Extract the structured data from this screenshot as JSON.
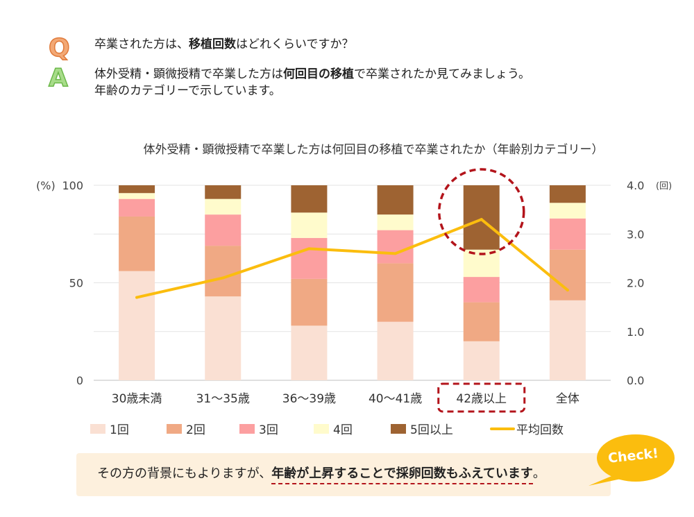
{
  "qa": {
    "q_letter": "Q",
    "a_letter": "A",
    "question_pre": "卒業された方は、",
    "question_bold": "移植回数",
    "question_post": "はどれくらいですか？",
    "answer_line1_pre": "体外受精・顕微授精で卒業した方は",
    "answer_line1_bold": "何回目の移植",
    "answer_line1_post": "で卒業されたか見てみましょう。",
    "answer_line2": "年齢のカテゴリーで示しています。"
  },
  "chart_data": {
    "type": "bar",
    "stacked": true,
    "title": "体外受精・顕微授精で卒業した方は何回目の移植で卒業されたか（年齢別カテゴリー）",
    "categories": [
      "30歳未満",
      "31～35歳",
      "36～39歳",
      "40～41歳",
      "42歳以上",
      "全体"
    ],
    "series": [
      {
        "name": "1回",
        "color": "#fae0d3",
        "values": [
          56,
          43,
          28,
          30,
          20,
          41
        ]
      },
      {
        "name": "2回",
        "color": "#f0a984",
        "values": [
          28,
          26,
          24,
          30,
          20,
          26
        ]
      },
      {
        "name": "3回",
        "color": "#fc9fa0",
        "values": [
          9,
          16,
          21,
          17,
          13,
          16
        ]
      },
      {
        "name": "4回",
        "color": "#fffbcc",
        "values": [
          3,
          8,
          13,
          8,
          14,
          8
        ]
      },
      {
        "name": "5回以上",
        "color": "#9e6332",
        "values": [
          4,
          7,
          14,
          15,
          33,
          9
        ]
      }
    ],
    "line_series": {
      "name": "平均回数",
      "color": "#fbbd0e",
      "values": [
        1.7,
        2.1,
        2.7,
        2.6,
        3.3,
        1.85
      ]
    },
    "y_left": {
      "label": "(%)",
      "min": 0,
      "max": 100,
      "ticks": [
        "0",
        "50",
        "100"
      ],
      "tick_values": [
        0,
        50,
        100
      ]
    },
    "y_right": {
      "label": "(回)",
      "min": 0,
      "max": 4,
      "ticks": [
        "0.0",
        "1.0",
        "2.0",
        "3.0",
        "4.0"
      ],
      "tick_values": [
        0,
        1,
        2,
        3,
        4
      ]
    },
    "highlight_category": "42歳以上",
    "legend_position": "bottom"
  },
  "note": {
    "text_pre": "その方の背景にもよりますが、",
    "text_bold": "年齢が上昇することで採卵回数もふえています",
    "text_post": "。",
    "check_label": "Check!"
  }
}
